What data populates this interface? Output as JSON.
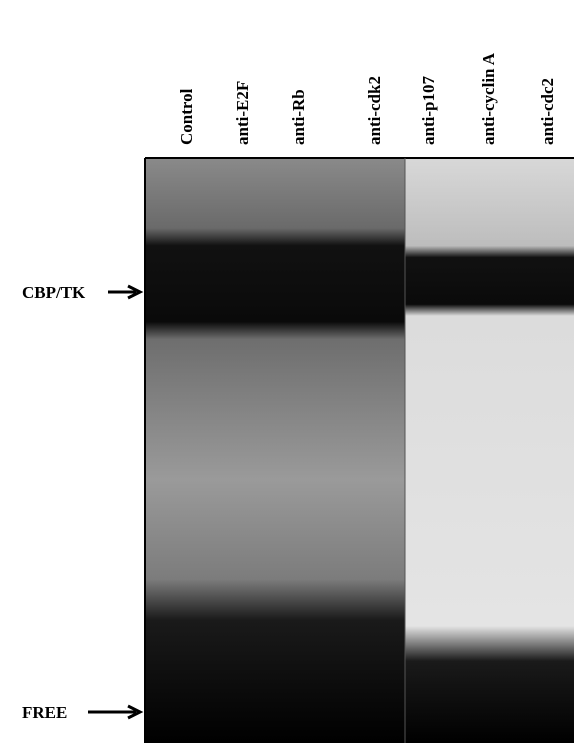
{
  "lanes": [
    "Control",
    "anti-E2F",
    "anti-Rb",
    "anti-cdk2",
    "anti-p107",
    "anti-cyclin A",
    "anti-cdc2"
  ],
  "markers": {
    "complex": "CBP/TK",
    "free": "FREE"
  }
}
